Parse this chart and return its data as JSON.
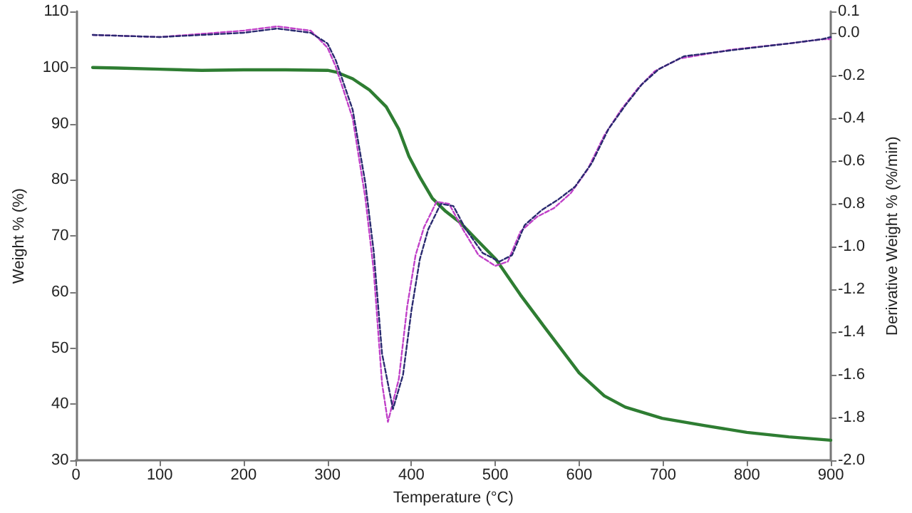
{
  "chart_data": {
    "type": "line",
    "xlabel": "Temperature (°C)",
    "ylabel": "Weight % (%)",
    "y2label": "Derivative Weight % (%/min)",
    "xlim": [
      0,
      900
    ],
    "xticks": [
      0,
      100,
      200,
      300,
      400,
      500,
      600,
      700,
      800,
      900
    ],
    "ylim": [
      30,
      110
    ],
    "yticks": [
      30,
      40,
      50,
      60,
      70,
      80,
      90,
      100,
      110
    ],
    "y2lim": [
      -2.0,
      0.1
    ],
    "y2ticks": [
      {
        "value": -2.0,
        "label": "-2.0"
      },
      -1.8,
      -1.6,
      -1.4,
      -1.2,
      {
        "value": -1.0,
        "label": "-1.0"
      },
      -0.8,
      -0.6,
      -0.4,
      -0.2,
      {
        "value": 0,
        "label": "0.0"
      },
      0.1
    ],
    "grid": false,
    "legend": false,
    "marker": "none",
    "series": [
      {
        "color": "#2e7d32",
        "line_style": "solid",
        "x": [
          20,
          50,
          100,
          150,
          200,
          250,
          300,
          310,
          330,
          350,
          370,
          385,
          397,
          410,
          425,
          440,
          458,
          480,
          501,
          530,
          560,
          600,
          630,
          655,
          699,
          750,
          800,
          850,
          900
        ],
        "values": [
          100,
          99.9,
          99.7,
          99.5,
          99.6,
          99.6,
          99.5,
          99.2,
          98,
          96,
          93,
          89,
          84.2,
          80.5,
          76.7,
          74.5,
          72.4,
          69,
          65.8,
          59.5,
          53.5,
          45.6,
          41.5,
          39.5,
          37.5,
          36.2,
          35,
          34.2,
          33.6
        ]
      },
      {
        "color": "#c040c8",
        "line_style": "dashed",
        "axis": "y2",
        "x": [
          20,
          100,
          200,
          240,
          280,
          300,
          310,
          330,
          345,
          355,
          365,
          372,
          385,
          395,
          405,
          415,
          430,
          445,
          460,
          480,
          500,
          515,
          530,
          550,
          570,
          590,
          610,
          630,
          650,
          670,
          690,
          720,
          780,
          850,
          890,
          900
        ],
        "values": [
          -0.01,
          -0.02,
          0.01,
          0.03,
          0.01,
          -0.07,
          -0.16,
          -0.4,
          -0.77,
          -1.11,
          -1.64,
          -1.82,
          -1.62,
          -1.28,
          -1.04,
          -0.91,
          -0.79,
          -0.8,
          -0.91,
          -1.04,
          -1.09,
          -1.07,
          -0.93,
          -0.86,
          -0.82,
          -0.75,
          -0.64,
          -0.48,
          -0.36,
          -0.26,
          -0.18,
          -0.12,
          -0.08,
          -0.05,
          -0.03,
          -0.03
        ]
      },
      {
        "color": "#2a2a70",
        "line_style": "dashed",
        "axis": "y2",
        "x": [
          20,
          100,
          200,
          240,
          280,
          300,
          310,
          330,
          345,
          355,
          365,
          378,
          390,
          400,
          410,
          420,
          435,
          450,
          465,
          485,
          505,
          520,
          535,
          555,
          575,
          595,
          615,
          635,
          655,
          675,
          695,
          725,
          785,
          850,
          890,
          900
        ],
        "values": [
          -0.01,
          -0.02,
          0.0,
          0.02,
          0.0,
          -0.05,
          -0.13,
          -0.36,
          -0.7,
          -1.02,
          -1.5,
          -1.76,
          -1.6,
          -1.3,
          -1.06,
          -0.92,
          -0.8,
          -0.81,
          -0.92,
          -1.03,
          -1.07,
          -1.04,
          -0.9,
          -0.83,
          -0.78,
          -0.72,
          -0.61,
          -0.45,
          -0.34,
          -0.24,
          -0.17,
          -0.11,
          -0.08,
          -0.05,
          -0.03,
          -0.02
        ]
      }
    ]
  }
}
